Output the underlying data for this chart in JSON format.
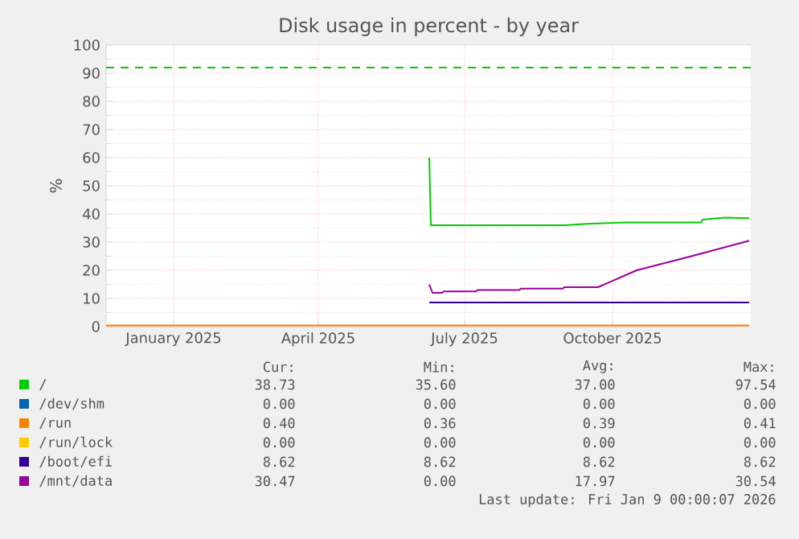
{
  "chart_data": {
    "type": "line",
    "title": "Disk usage in percent - by year",
    "ylabel": "%",
    "xlim": [
      "2024-11-20",
      "2025-12-26"
    ],
    "xticks": [
      {
        "value": "2025-01-01",
        "label": "January 2025"
      },
      {
        "value": "2025-04-01",
        "label": "April 2025"
      },
      {
        "value": "2025-07-01",
        "label": "July 2025"
      },
      {
        "value": "2025-10-01",
        "label": "October 2025"
      }
    ],
    "ylim": [
      0,
      100
    ],
    "yticks": [
      0,
      10,
      20,
      30,
      40,
      50,
      60,
      70,
      80,
      90,
      100
    ],
    "grid": true,
    "legend": "bottom",
    "marker": "none",
    "line_style": "solid",
    "series": [
      {
        "name": "/",
        "color": "#00cc00",
        "x": [
          "2025-06-09",
          "2025-06-10",
          "2025-09-01",
          "2025-09-15",
          "2025-10-10",
          "2025-11-25",
          "2025-11-26",
          "2025-12-10",
          "2025-12-25"
        ],
        "values": [
          60,
          36,
          36,
          36.5,
          37,
          37,
          38,
          38.7,
          38.5
        ]
      },
      {
        "name": "/dev/shm",
        "color": "#0066b3"
      },
      {
        "name": "/run",
        "color": "#ff8000",
        "x": [
          "2024-11-20",
          "2025-12-25"
        ],
        "values": [
          0.4,
          0.4
        ]
      },
      {
        "name": "/run/lock",
        "color": "#ffcc00"
      },
      {
        "name": "/boot/efi",
        "color": "#330099",
        "x": [
          "2025-06-09",
          "2025-12-25"
        ],
        "values": [
          8.6,
          8.6
        ]
      },
      {
        "name": "/mnt/data",
        "color": "#990099",
        "x": [
          "2025-06-09",
          "2025-06-11",
          "2025-06-17",
          "2025-06-18",
          "2025-07-08",
          "2025-07-09",
          "2025-08-04",
          "2025-08-05",
          "2025-08-31",
          "2025-09-01",
          "2025-09-22",
          "2025-10-16",
          "2025-11-19",
          "2025-12-25"
        ],
        "values": [
          15,
          12,
          12,
          12.5,
          12.5,
          13,
          13,
          13.5,
          13.5,
          14,
          14,
          20,
          25,
          30.5
        ]
      }
    ],
    "ref_lines": [
      {
        "axis": "y",
        "value": 92,
        "color": "#00cc00",
        "line_style": "dashed"
      }
    ],
    "annotations": [
      "Cur:",
      "Min:",
      "Avg:",
      "Max:",
      "38.73",
      "35.60",
      "37.00",
      "97.54",
      "0.00",
      "0.00",
      "0.00",
      "0.00",
      "0.40",
      "0.36",
      "0.39",
      "0.41",
      "0.00",
      "0.00",
      "0.00",
      "0.00",
      "8.62",
      "8.62",
      "8.62",
      "8.62",
      "30.47",
      "0.00",
      "17.97",
      "30.54",
      "Last update: Fri Jan  9 00:00:07 2026"
    ]
  }
}
